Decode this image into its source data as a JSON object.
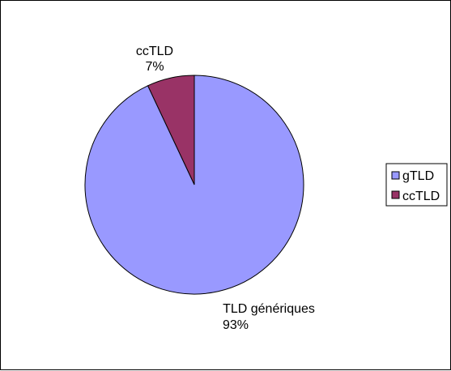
{
  "chart_data": {
    "type": "pie",
    "categories": [
      "gTLD",
      "ccTLD"
    ],
    "values": [
      93,
      7
    ],
    "slice_labels": [
      {
        "name": "TLD génériques",
        "value": "93%"
      },
      {
        "name": "ccTLD",
        "value": "7%"
      }
    ],
    "colors": [
      "#9999FF",
      "#993366"
    ],
    "legend": {
      "placement": "right",
      "entries": [
        "gTLD",
        "ccTLD"
      ]
    }
  }
}
